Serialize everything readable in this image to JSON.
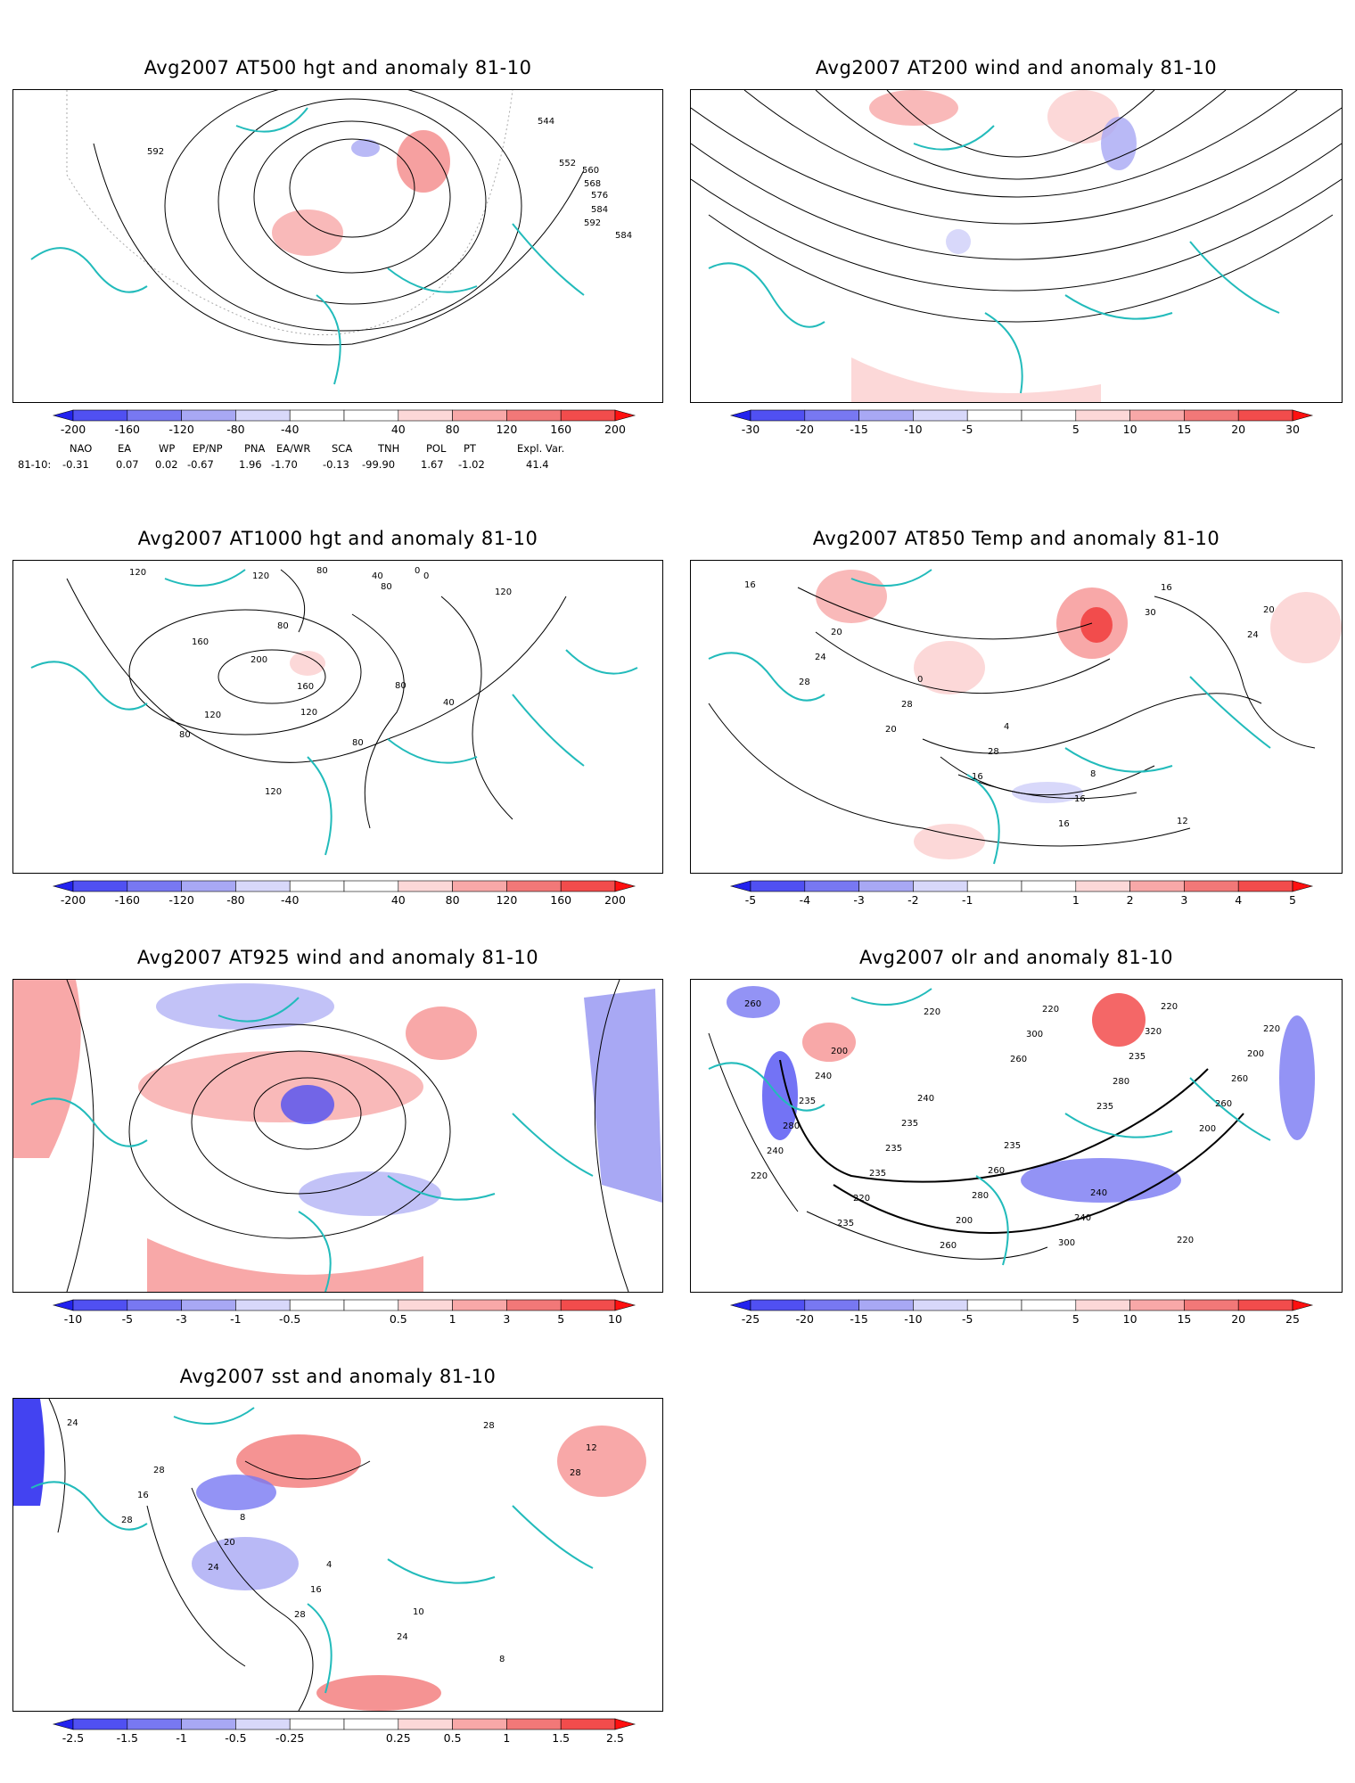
{
  "panels": [
    {
      "key": "p500",
      "title": "Avg2007 AT500 hgt and anomaly 81-10",
      "colorbar": [
        "-200",
        "-160",
        "-120",
        "-80",
        "-40",
        "40",
        "80",
        "120",
        "160",
        "200"
      ],
      "contour_labels": [
        "592",
        "544",
        "552",
        "560",
        "568",
        "576",
        "584",
        "592",
        "584"
      ]
    },
    {
      "key": "p200",
      "title": "Avg2007 AT200 wind and anomaly 81-10",
      "colorbar": [
        "-30",
        "-20",
        "-15",
        "-10",
        "-5",
        "5",
        "10",
        "15",
        "20",
        "30"
      ],
      "contour_labels": []
    },
    {
      "key": "p1000",
      "title": "Avg2007 AT1000 hgt and anomaly 81-10",
      "colorbar": [
        "-200",
        "-160",
        "-120",
        "-80",
        "-40",
        "40",
        "80",
        "120",
        "160",
        "200"
      ],
      "contour_labels": [
        "120",
        "120",
        "80",
        "40",
        "0",
        "80",
        "160",
        "200",
        "120",
        "80",
        "160",
        "120",
        "80",
        "80",
        "40",
        "120",
        "80",
        "0",
        "120"
      ]
    },
    {
      "key": "p850",
      "title": "Avg2007 AT850 Temp and anomaly 81-10",
      "colorbar": [
        "-5",
        "-4",
        "-3",
        "-2",
        "-1",
        "1",
        "2",
        "3",
        "4",
        "5"
      ],
      "contour_labels": [
        "16",
        "20",
        "0",
        "4",
        "8",
        "12",
        "20",
        "24",
        "28",
        "28",
        "16",
        "16",
        "24",
        "28",
        "20",
        "16",
        "16",
        "30"
      ]
    },
    {
      "key": "p925",
      "title": "Avg2007 AT925 wind and anomaly 81-10",
      "colorbar": [
        "-10",
        "-5",
        "-3",
        "-1",
        "-0.5",
        "0.5",
        "1",
        "3",
        "5",
        "10"
      ],
      "contour_labels": []
    },
    {
      "key": "polr",
      "title": "Avg2007 olr and anomaly 81-10",
      "colorbar": [
        "-25",
        "-20",
        "-15",
        "-10",
        "-5",
        "5",
        "10",
        "15",
        "20",
        "25"
      ],
      "contour_labels": [
        "260",
        "200",
        "240",
        "235",
        "240",
        "220",
        "220",
        "240",
        "235",
        "260",
        "240",
        "220",
        "200",
        "235",
        "235",
        "280",
        "300",
        "320",
        "260",
        "280",
        "235",
        "200",
        "220",
        "235",
        "260",
        "240",
        "220",
        "260",
        "300",
        "280",
        "200",
        "220",
        "235",
        "220",
        "260",
        "235"
      ]
    },
    {
      "key": "psst",
      "title": "Avg2007 sst and anomaly 81-10",
      "colorbar": [
        "-2.5",
        "-1.5",
        "-1",
        "-0.5",
        "-0.25",
        "0.25",
        "0.5",
        "1",
        "1.5",
        "2.5"
      ],
      "contour_labels": [
        "24",
        "28",
        "8",
        "4",
        "10",
        "8",
        "12",
        "16",
        "20",
        "16",
        "24",
        "28",
        "28",
        "28",
        "24",
        "28"
      ]
    }
  ],
  "teleconnection": {
    "headers": [
      "NAO",
      "EA",
      "WP",
      "EP/NP",
      "PNA",
      "EA/WR",
      "SCA",
      "TNH",
      "POL",
      "PT",
      "Expl. Var."
    ],
    "row_label": "81-10:",
    "values": [
      "-0.31",
      "0.07",
      "0.02",
      "-0.67",
      "1.96",
      "-1.70",
      "-0.13",
      "-99.90",
      "1.67",
      "-1.02",
      "41.4"
    ]
  },
  "colors": {
    "blues": [
      "#2222ee",
      "#5050f2",
      "#7878f2",
      "#a8a8f4",
      "#d8d8fa"
    ],
    "reds": [
      "#fcd8d8",
      "#f8a8a8",
      "#f27878",
      "#f24c4c",
      "#ff1010"
    ],
    "coast": "#22bbbb"
  }
}
